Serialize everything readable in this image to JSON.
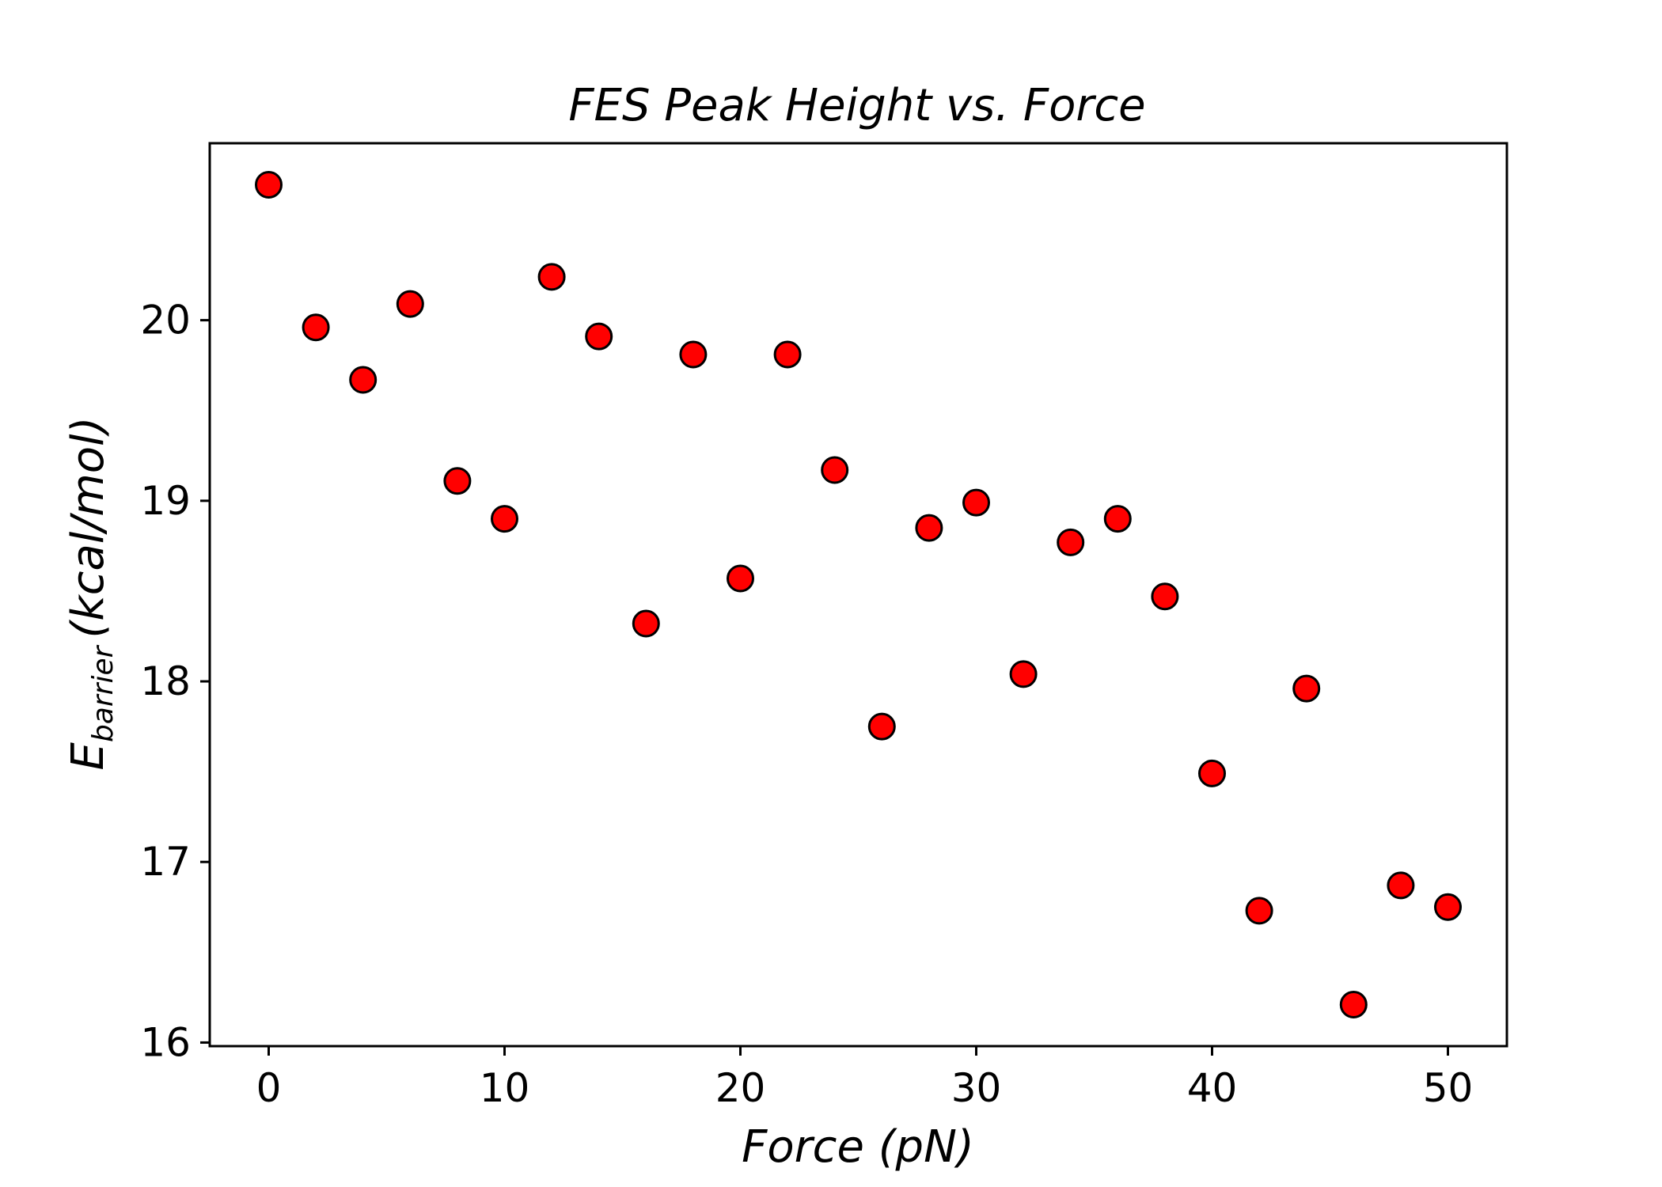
{
  "chart_data": {
    "type": "scatter",
    "title": "FES Peak Height vs. Force",
    "xlabel": "Force (pN)",
    "ylabel": {
      "main": "E",
      "subscript": "barrier",
      "unit": "(kcal/mol)"
    },
    "xlim": [
      -2.5,
      52.5
    ],
    "ylim": [
      15.98,
      20.98
    ],
    "xticks": [
      0,
      10,
      20,
      30,
      40,
      50
    ],
    "yticks": [
      16,
      17,
      18,
      19,
      20
    ],
    "grid": false,
    "marker_color": "#ff0000",
    "marker_edge_color": "#000000",
    "points": [
      {
        "x": 0,
        "y": 20.75
      },
      {
        "x": 2,
        "y": 19.96
      },
      {
        "x": 4,
        "y": 19.67
      },
      {
        "x": 6,
        "y": 20.09
      },
      {
        "x": 8,
        "y": 19.11
      },
      {
        "x": 10,
        "y": 18.9
      },
      {
        "x": 12,
        "y": 20.24
      },
      {
        "x": 14,
        "y": 19.91
      },
      {
        "x": 16,
        "y": 18.32
      },
      {
        "x": 18,
        "y": 19.81
      },
      {
        "x": 20,
        "y": 18.57
      },
      {
        "x": 22,
        "y": 19.81
      },
      {
        "x": 24,
        "y": 19.17
      },
      {
        "x": 26,
        "y": 17.75
      },
      {
        "x": 28,
        "y": 18.85
      },
      {
        "x": 30,
        "y": 18.99
      },
      {
        "x": 32,
        "y": 18.04
      },
      {
        "x": 34,
        "y": 18.77
      },
      {
        "x": 36,
        "y": 18.9
      },
      {
        "x": 38,
        "y": 18.47
      },
      {
        "x": 40,
        "y": 17.49
      },
      {
        "x": 42,
        "y": 16.73
      },
      {
        "x": 44,
        "y": 17.96
      },
      {
        "x": 46,
        "y": 16.21
      },
      {
        "x": 48,
        "y": 16.87
      },
      {
        "x": 50,
        "y": 16.75
      }
    ]
  }
}
